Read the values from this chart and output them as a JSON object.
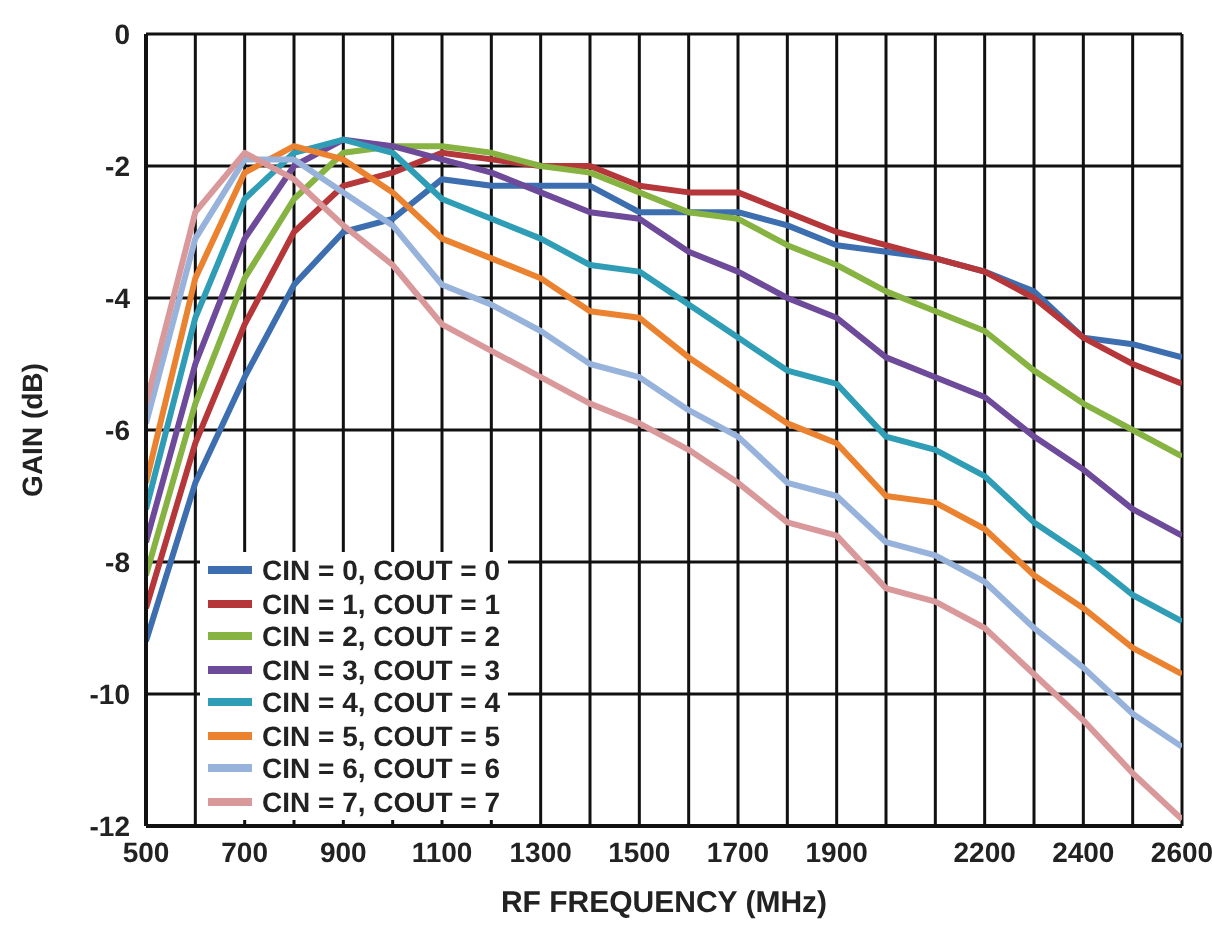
{
  "chart_data": {
    "type": "line",
    "xlabel": "RF FREQUENCY (MHz)",
    "ylabel": "GAIN (dB)",
    "x": [
      500,
      600,
      700,
      800,
      900,
      1000,
      1100,
      1200,
      1300,
      1400,
      1500,
      1600,
      1700,
      1800,
      1900,
      2000,
      2100,
      2200,
      2300,
      2400,
      2500,
      2600
    ],
    "xlim": [
      500,
      2600
    ],
    "xticks": [
      500,
      {
        "value": 600,
        "label": null
      },
      700,
      {
        "value": 800,
        "label": null
      },
      900,
      {
        "value": 1000,
        "label": null
      },
      1100,
      {
        "value": 1200,
        "label": null
      },
      1300,
      {
        "value": 1400,
        "label": null
      },
      1500,
      {
        "value": 1600,
        "label": null
      },
      1700,
      {
        "value": 1800,
        "label": null
      },
      1900,
      {
        "value": 2000,
        "label": null
      },
      {
        "value": 2100,
        "label": null
      },
      2200,
      {
        "value": 2300,
        "label": null
      },
      2400,
      {
        "value": 2500,
        "label": null
      },
      2600
    ],
    "ylim": [
      -12,
      0
    ],
    "yticks": [
      -12,
      -10,
      -8,
      -6,
      -4,
      -2,
      0
    ],
    "grid": true,
    "legend": "bottom left",
    "marker": "none",
    "line_style": "solid",
    "series": [
      {
        "name": "CIN = 0, COUT = 0",
        "color": "#3d6fb0",
        "values": [
          -9.2,
          -6.8,
          -5.2,
          -3.8,
          -3.0,
          -2.8,
          -2.2,
          -2.3,
          -2.3,
          -2.3,
          -2.7,
          -2.7,
          -2.7,
          -2.9,
          -3.2,
          -3.3,
          -3.4,
          -3.6,
          -3.9,
          -4.6,
          -4.7,
          -4.9
        ]
      },
      {
        "name": "CIN = 1, COUT = 1",
        "color": "#b5373a",
        "values": [
          -8.7,
          -6.2,
          -4.4,
          -3.0,
          -2.3,
          -2.1,
          -1.8,
          -1.9,
          -2.0,
          -2.0,
          -2.3,
          -2.4,
          -2.4,
          -2.7,
          -3.0,
          -3.2,
          -3.4,
          -3.6,
          -4.0,
          -4.6,
          -5.0,
          -5.3
        ]
      },
      {
        "name": "CIN = 2, COUT = 2",
        "color": "#86b341",
        "values": [
          -8.2,
          -5.6,
          -3.7,
          -2.5,
          -1.8,
          -1.7,
          -1.7,
          -1.8,
          -2.0,
          -2.1,
          -2.4,
          -2.7,
          -2.8,
          -3.2,
          -3.5,
          -3.9,
          -4.2,
          -4.5,
          -5.1,
          -5.6,
          -6.0,
          -6.4
        ]
      },
      {
        "name": "CIN = 3, COUT = 3",
        "color": "#6e4a9a",
        "values": [
          -7.7,
          -5.0,
          -3.1,
          -2.0,
          -1.6,
          -1.7,
          -1.9,
          -2.1,
          -2.4,
          -2.7,
          -2.8,
          -3.3,
          -3.6,
          -4.0,
          -4.3,
          -4.9,
          -5.2,
          -5.5,
          -6.1,
          -6.6,
          -7.2,
          -7.6
        ]
      },
      {
        "name": "CIN = 4, COUT = 4",
        "color": "#2f9db5",
        "values": [
          -7.2,
          -4.3,
          -2.5,
          -1.8,
          -1.6,
          -1.8,
          -2.5,
          -2.8,
          -3.1,
          -3.5,
          -3.6,
          -4.1,
          -4.6,
          -5.1,
          -5.3,
          -6.1,
          -6.3,
          -6.7,
          -7.4,
          -7.9,
          -8.5,
          -8.9
        ]
      },
      {
        "name": "CIN = 5, COUT = 5",
        "color": "#ea8230",
        "values": [
          -6.8,
          -3.7,
          -2.1,
          -1.7,
          -1.9,
          -2.4,
          -3.1,
          -3.4,
          -3.7,
          -4.2,
          -4.3,
          -4.9,
          -5.4,
          -5.9,
          -6.2,
          -7.0,
          -7.1,
          -7.5,
          -8.2,
          -8.7,
          -9.3,
          -9.7
        ]
      },
      {
        "name": "CIN = 6, COUT = 6",
        "color": "#98b3db",
        "values": [
          -5.9,
          -3.1,
          -1.9,
          -1.9,
          -2.4,
          -2.9,
          -3.8,
          -4.1,
          -4.5,
          -5.0,
          -5.2,
          -5.7,
          -6.1,
          -6.8,
          -7.0,
          -7.7,
          -7.9,
          -8.3,
          -9.0,
          -9.6,
          -10.3,
          -10.8
        ]
      },
      {
        "name": "CIN = 7, COUT = 7",
        "color": "#d9999b",
        "values": [
          -5.6,
          -2.7,
          -1.8,
          -2.2,
          -2.9,
          -3.5,
          -4.4,
          -4.8,
          -5.2,
          -5.6,
          -5.9,
          -6.3,
          -6.8,
          -7.4,
          -7.6,
          -8.4,
          -8.6,
          -9.0,
          -9.7,
          -10.4,
          -11.2,
          -11.9
        ]
      }
    ]
  }
}
